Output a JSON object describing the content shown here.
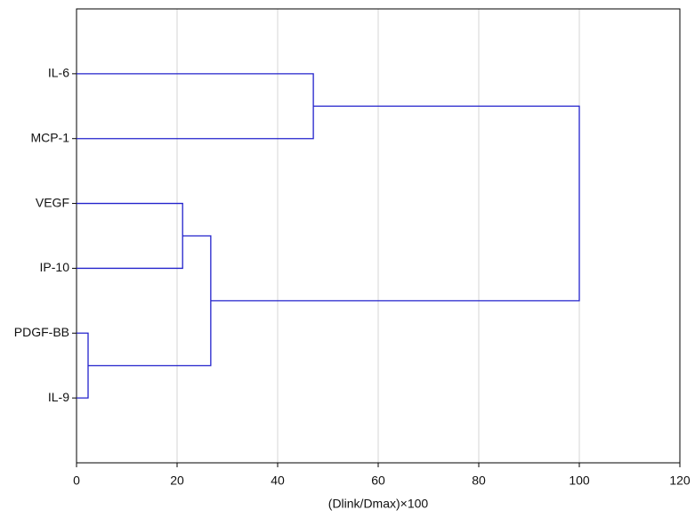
{
  "chart_data": {
    "type": "dendrogram",
    "xlabel": "(Dlink/Dmax)×100",
    "xlim": [
      0,
      120
    ],
    "xticks": [
      0,
      20,
      40,
      60,
      80,
      100,
      120
    ],
    "grid": true,
    "color": "#2222cc",
    "tree": {
      "height": 100,
      "children": [
        {
          "height": 47.1,
          "children": [
            "IL-6",
            "MCP-1"
          ]
        },
        {
          "height": 26.7,
          "children": [
            {
              "height": 21.1,
              "children": [
                "VEGF",
                "IP-10"
              ]
            },
            {
              "height": 2.3,
              "children": [
                "PDGF-BB",
                "IL-9"
              ]
            }
          ]
        }
      ]
    }
  }
}
